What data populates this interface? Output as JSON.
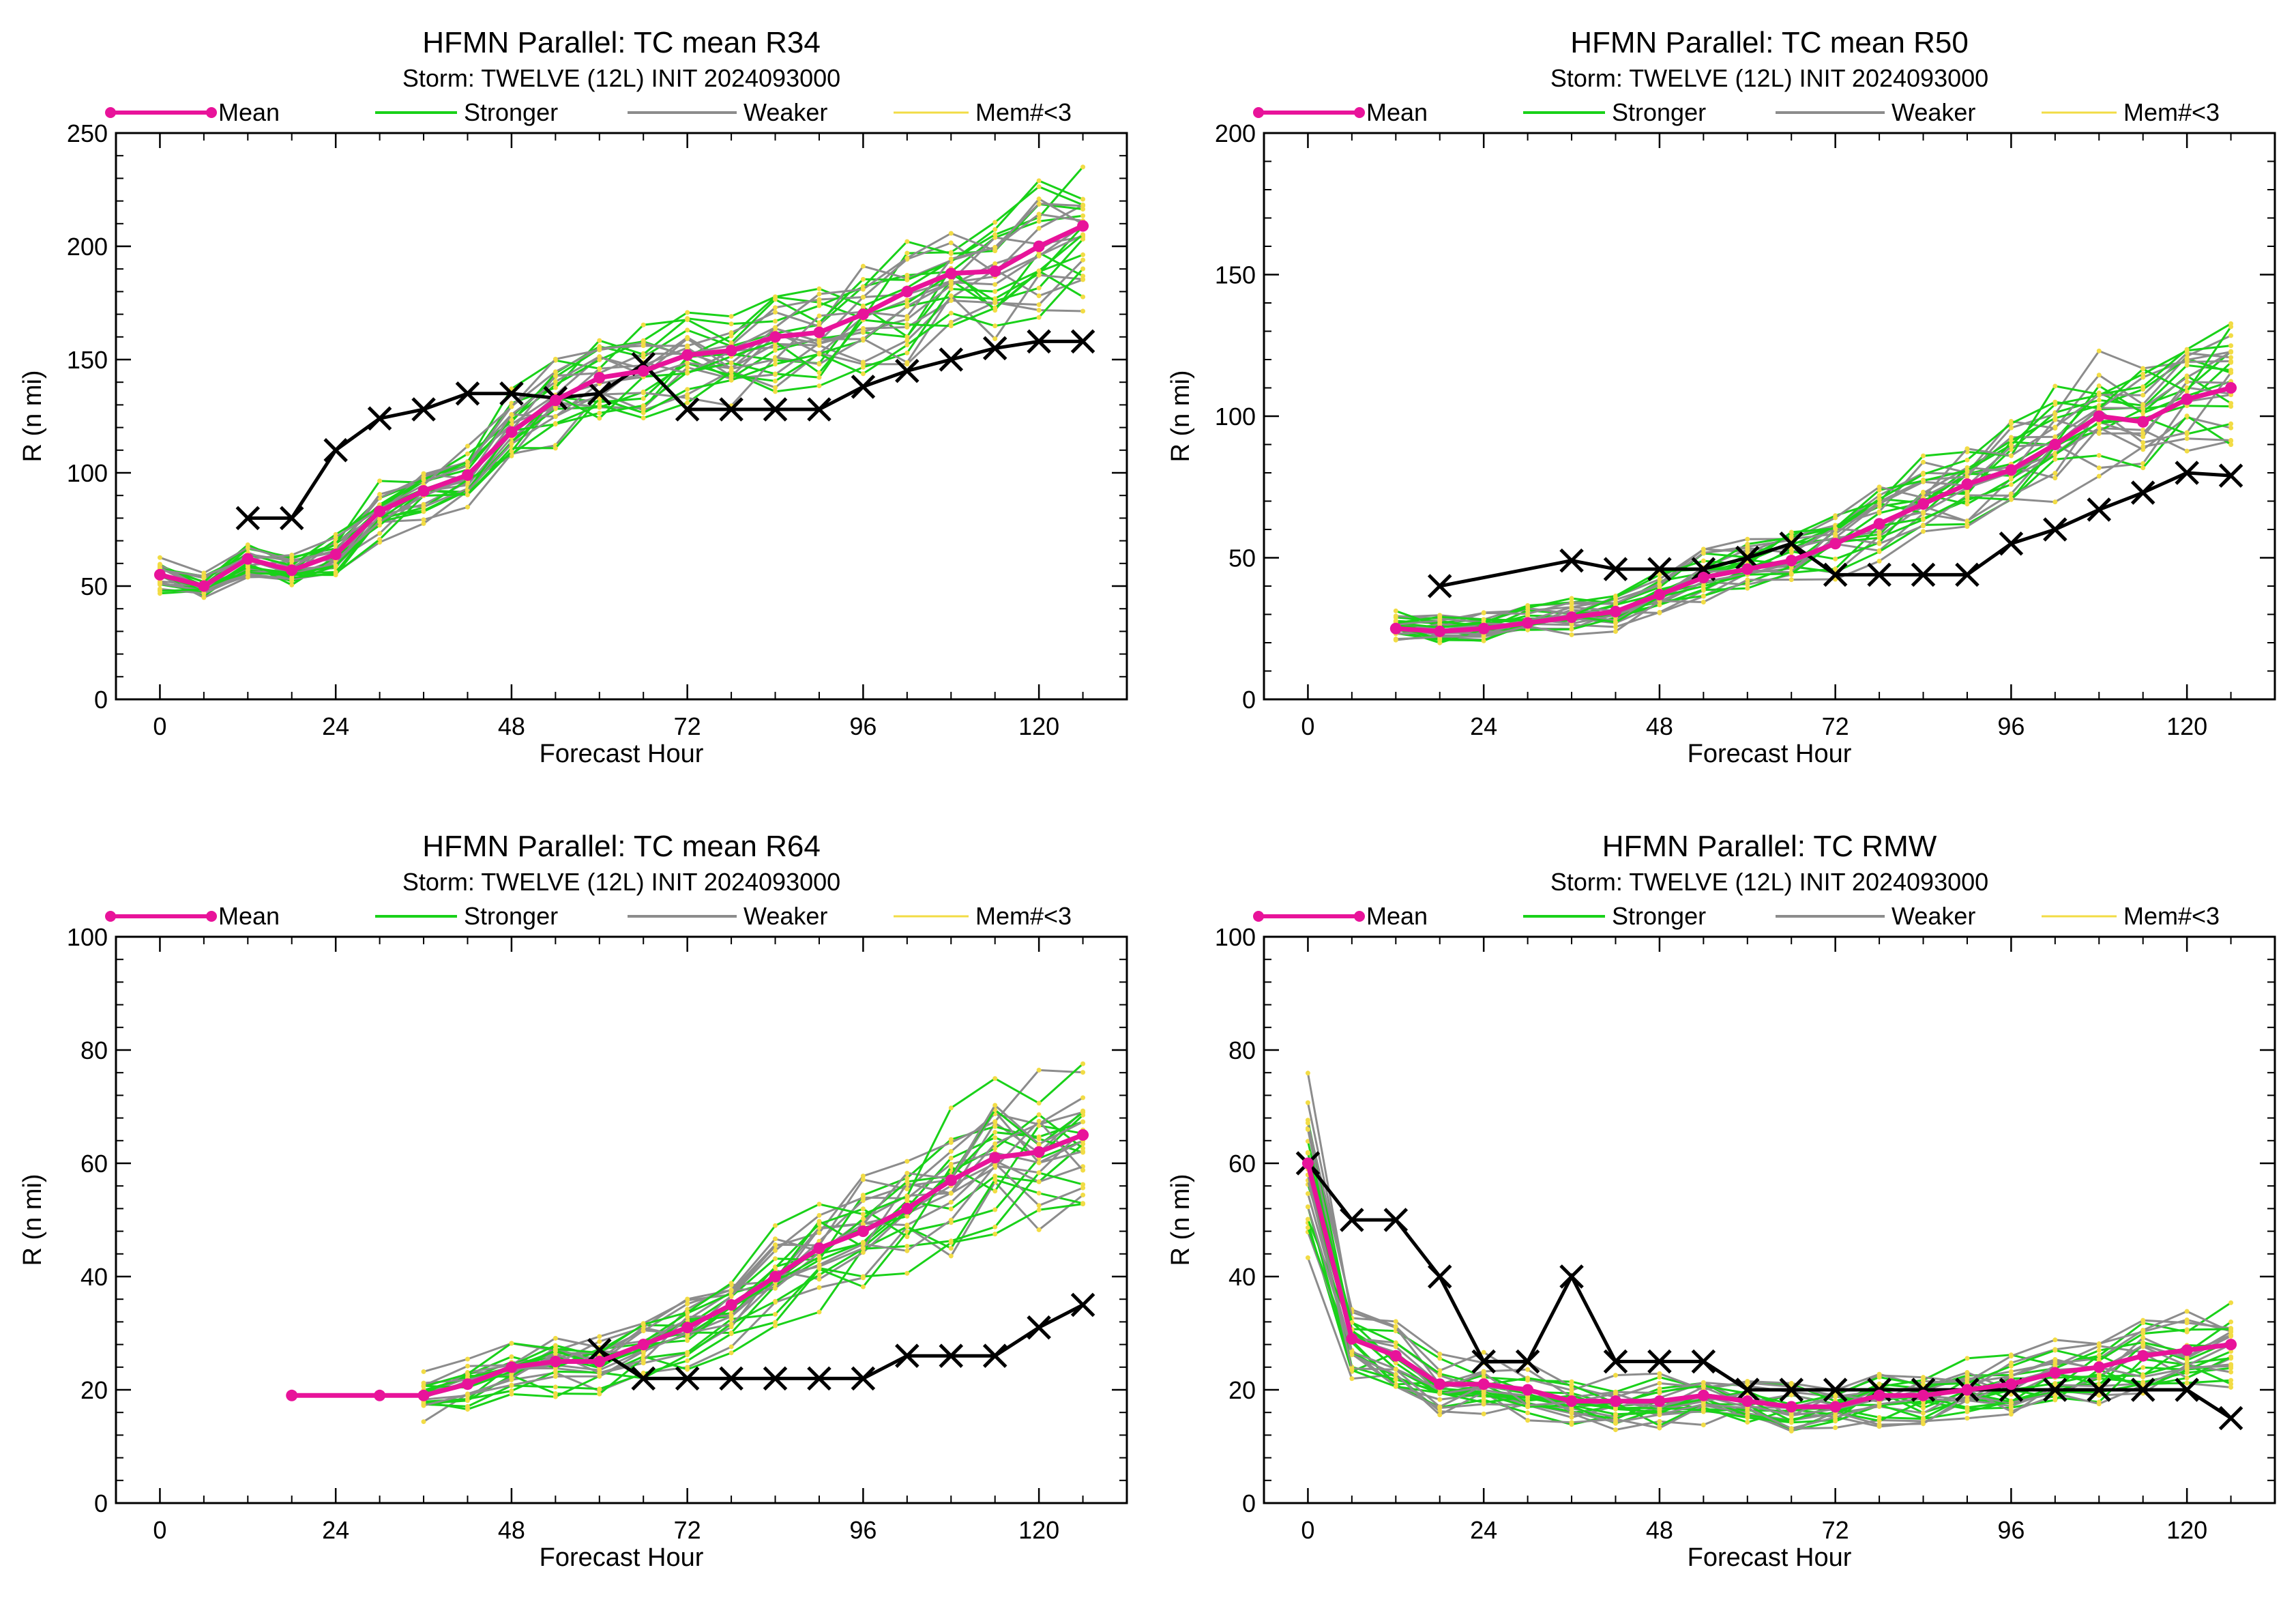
{
  "legend_labels": {
    "mean": "Mean",
    "stronger": "Stronger",
    "weaker": "Weaker",
    "few": "Mem#<3"
  },
  "colors": {
    "mean": "#e8139a",
    "stronger": "#19d119",
    "weaker": "#8c8c8c",
    "few": "#f2dc45",
    "obs": "#000000"
  },
  "chart_data": [
    {
      "type": "line",
      "title": "HFMN Parallel: TC mean R34",
      "subtitle": "Storm: TWELVE (12L) INIT 2024093000",
      "xlabel": "Forecast Hour",
      "ylabel": "R (n mi)",
      "xlim": [
        -6,
        132
      ],
      "ylim": [
        0,
        250
      ],
      "xticks": [
        0,
        24,
        48,
        72,
        96,
        120
      ],
      "yticks": [
        0,
        50,
        100,
        150,
        200,
        250
      ],
      "legend_position": "top",
      "series": [
        {
          "name": "Mean",
          "x": [
            0,
            6,
            12,
            18,
            24,
            30,
            36,
            42,
            48,
            54,
            60,
            66,
            72,
            78,
            84,
            90,
            96,
            102,
            108,
            114,
            120,
            126
          ],
          "values": [
            55,
            50,
            62,
            57,
            64,
            83,
            92,
            99,
            118,
            132,
            142,
            145,
            152,
            154,
            160,
            162,
            170,
            180,
            188,
            189,
            200,
            209
          ]
        },
        {
          "x": [
            12,
            18,
            24,
            30,
            36,
            42,
            48,
            54,
            60,
            66,
            72,
            78,
            84,
            90,
            96,
            102,
            108,
            114,
            120,
            126
          ],
          "values": [
            80,
            80,
            110,
            124,
            128,
            135,
            135,
            133,
            135,
            148,
            128,
            128,
            128,
            128,
            138,
            145,
            150,
            155,
            158,
            158
          ]
        }
      ]
    },
    {
      "type": "line",
      "title": "HFMN Parallel: TC mean R50",
      "subtitle": "Storm: TWELVE (12L) INIT 2024093000",
      "xlabel": "Forecast Hour",
      "ylabel": "R (n mi)",
      "xlim": [
        -6,
        132
      ],
      "ylim": [
        0,
        200
      ],
      "xticks": [
        0,
        24,
        48,
        72,
        96,
        120
      ],
      "yticks": [
        0,
        50,
        100,
        150,
        200
      ],
      "legend_position": "top",
      "series": [
        {
          "name": "Mean",
          "x": [
            12,
            18,
            24,
            30,
            36,
            42,
            48,
            54,
            60,
            66,
            72,
            78,
            84,
            90,
            96,
            102,
            108,
            114,
            120,
            126
          ],
          "values": [
            25,
            24,
            25,
            27,
            29,
            31,
            37,
            43,
            46,
            49,
            55,
            62,
            69,
            76,
            81,
            90,
            100,
            98,
            106,
            110
          ]
        },
        {
          "x": [
            18,
            36,
            42,
            48,
            54,
            60,
            66,
            72,
            78,
            84,
            90,
            96,
            102,
            108,
            114,
            120,
            126
          ],
          "values": [
            40,
            49,
            46,
            46,
            46,
            50,
            55,
            44,
            44,
            44,
            44,
            55,
            60,
            67,
            73,
            80,
            79
          ]
        }
      ]
    },
    {
      "type": "line",
      "title": "HFMN Parallel: TC mean R64",
      "subtitle": "Storm: TWELVE (12L) INIT 2024093000",
      "xlabel": "Forecast Hour",
      "ylabel": "R (n mi)",
      "xlim": [
        -6,
        132
      ],
      "ylim": [
        0,
        100
      ],
      "xticks": [
        0,
        24,
        48,
        72,
        96,
        120
      ],
      "yticks": [
        0,
        20,
        40,
        60,
        80,
        100
      ],
      "legend_position": "top",
      "series": [
        {
          "name": "Mean",
          "x": [
            18,
            30,
            36,
            42,
            48,
            54,
            60,
            66,
            72,
            78,
            84,
            90,
            96,
            102,
            108,
            114,
            120,
            126
          ],
          "values": [
            19,
            19,
            19,
            21,
            24,
            25,
            25,
            28,
            31,
            35,
            40,
            45,
            48,
            52,
            57,
            61,
            62,
            65
          ]
        },
        {
          "x": [
            60,
            66,
            72,
            78,
            84,
            90,
            96,
            102,
            108,
            114,
            120,
            126
          ],
          "values": [
            27,
            22,
            22,
            22,
            22,
            22,
            22,
            26,
            26,
            26,
            31,
            35
          ]
        }
      ]
    },
    {
      "type": "line",
      "title": "HFMN Parallel: TC RMW",
      "subtitle": "Storm: TWELVE (12L) INIT 2024093000",
      "xlabel": "Forecast Hour",
      "ylabel": "R (n mi)",
      "xlim": [
        -6,
        132
      ],
      "ylim": [
        0,
        100
      ],
      "xticks": [
        0,
        24,
        48,
        72,
        96,
        120
      ],
      "yticks": [
        0,
        20,
        40,
        60,
        80,
        100
      ],
      "legend_position": "top",
      "series": [
        {
          "name": "Mean",
          "x": [
            0,
            6,
            12,
            18,
            24,
            30,
            36,
            42,
            48,
            54,
            60,
            66,
            72,
            78,
            84,
            90,
            96,
            102,
            108,
            114,
            120,
            126
          ],
          "values": [
            60,
            29,
            26,
            21,
            21,
            20,
            18,
            18,
            18,
            19,
            18,
            17,
            17,
            19,
            19,
            20,
            21,
            23,
            24,
            26,
            27,
            28
          ]
        },
        {
          "x": [
            0,
            6,
            12,
            18,
            24,
            30,
            36,
            42,
            48,
            54,
            60,
            66,
            72,
            78,
            84,
            90,
            96,
            102,
            108,
            114,
            120,
            126
          ],
          "values": [
            60,
            50,
            50,
            40,
            25,
            25,
            40,
            25,
            25,
            25,
            20,
            20,
            20,
            20,
            20,
            20,
            20,
            20,
            20,
            20,
            20,
            15
          ]
        }
      ]
    }
  ]
}
